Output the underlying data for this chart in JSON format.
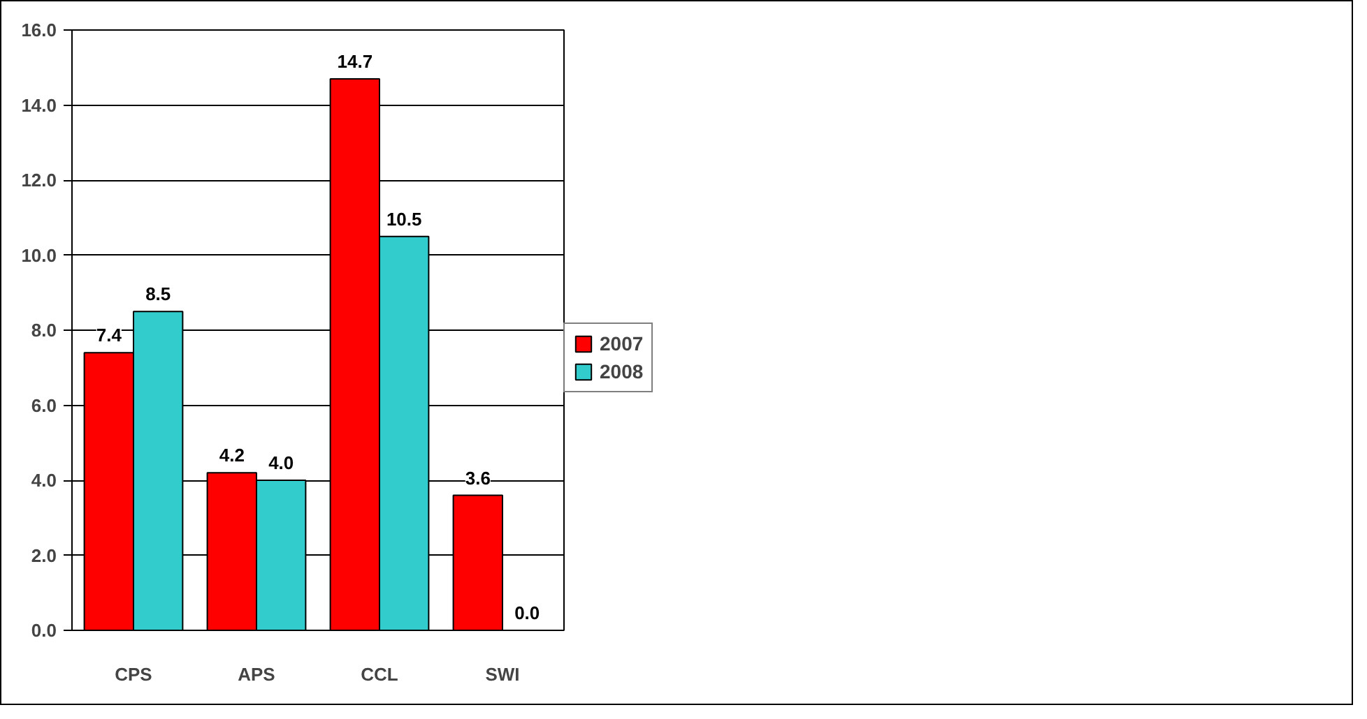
{
  "chart_data": {
    "type": "bar",
    "categories": [
      "CPS",
      "APS",
      "CCL",
      "SWI"
    ],
    "series": [
      {
        "name": "2007",
        "color": "#ff0000",
        "values": [
          7.4,
          4.2,
          14.7,
          3.6
        ],
        "value_labels": [
          "7.4",
          "4.2",
          "14.7",
          "3.6"
        ]
      },
      {
        "name": "2008",
        "color": "#33cccc",
        "values": [
          8.5,
          4.0,
          10.5,
          0.0
        ],
        "value_labels": [
          "8.5",
          "4.0",
          "10.5",
          "0.0"
        ]
      }
    ],
    "ylim": [
      0,
      16
    ],
    "yticks": [
      {
        "value": 0,
        "label": "0.0"
      },
      {
        "value": 2,
        "label": "2.0"
      },
      {
        "value": 4,
        "label": "4.0"
      },
      {
        "value": 6,
        "label": "6.0"
      },
      {
        "value": 8,
        "label": "8.0"
      },
      {
        "value": 10,
        "label": "10.0"
      },
      {
        "value": 12,
        "label": "12.0"
      },
      {
        "value": 14,
        "label": "14.0"
      },
      {
        "value": 16,
        "label": "16.0"
      }
    ],
    "grid": "y",
    "legend": "right"
  }
}
